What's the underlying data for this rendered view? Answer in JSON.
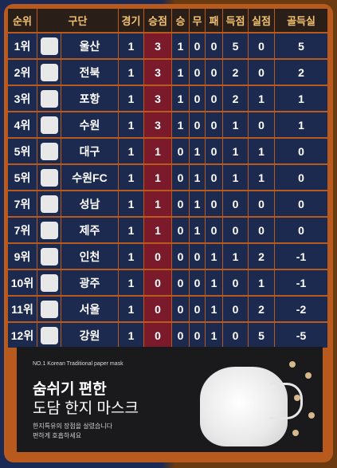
{
  "headers": [
    "순위",
    "구단",
    "경기",
    "승점",
    "승",
    "무",
    "패",
    "득점",
    "실점",
    "골득실"
  ],
  "rows": [
    {
      "rank": "1위",
      "team": "울산",
      "games": "1",
      "pts": "3",
      "w": "1",
      "d": "0",
      "l": "0",
      "gf": "5",
      "ga": "0",
      "gd": "5"
    },
    {
      "rank": "2위",
      "team": "전북",
      "games": "1",
      "pts": "3",
      "w": "1",
      "d": "0",
      "l": "0",
      "gf": "2",
      "ga": "0",
      "gd": "2"
    },
    {
      "rank": "3위",
      "team": "포항",
      "games": "1",
      "pts": "3",
      "w": "1",
      "d": "0",
      "l": "0",
      "gf": "2",
      "ga": "1",
      "gd": "1"
    },
    {
      "rank": "4위",
      "team": "수원",
      "games": "1",
      "pts": "3",
      "w": "1",
      "d": "0",
      "l": "0",
      "gf": "1",
      "ga": "0",
      "gd": "1"
    },
    {
      "rank": "5위",
      "team": "대구",
      "games": "1",
      "pts": "1",
      "w": "0",
      "d": "1",
      "l": "0",
      "gf": "1",
      "ga": "1",
      "gd": "0"
    },
    {
      "rank": "5위",
      "team": "수원FC",
      "games": "1",
      "pts": "1",
      "w": "0",
      "d": "1",
      "l": "0",
      "gf": "1",
      "ga": "1",
      "gd": "0"
    },
    {
      "rank": "7위",
      "team": "성남",
      "games": "1",
      "pts": "1",
      "w": "0",
      "d": "1",
      "l": "0",
      "gf": "0",
      "ga": "0",
      "gd": "0"
    },
    {
      "rank": "7위",
      "team": "제주",
      "games": "1",
      "pts": "1",
      "w": "0",
      "d": "1",
      "l": "0",
      "gf": "0",
      "ga": "0",
      "gd": "0"
    },
    {
      "rank": "9위",
      "team": "인천",
      "games": "1",
      "pts": "0",
      "w": "0",
      "d": "0",
      "l": "1",
      "gf": "1",
      "ga": "2",
      "gd": "-1"
    },
    {
      "rank": "10위",
      "team": "광주",
      "games": "1",
      "pts": "0",
      "w": "0",
      "d": "0",
      "l": "1",
      "gf": "0",
      "ga": "1",
      "gd": "-1"
    },
    {
      "rank": "11위",
      "team": "서울",
      "games": "1",
      "pts": "0",
      "w": "0",
      "d": "0",
      "l": "1",
      "gf": "0",
      "ga": "2",
      "gd": "-2"
    },
    {
      "rank": "12위",
      "team": "강원",
      "games": "1",
      "pts": "0",
      "w": "0",
      "d": "0",
      "l": "1",
      "gf": "0",
      "ga": "5",
      "gd": "-5"
    }
  ],
  "ad": {
    "small": "NO.1 Korean Traditional paper mask",
    "headline1": "숨쉬기 편한",
    "headline2": "도담 한지 마스크",
    "desc1": "한지특유의 장점을 살렸습니다",
    "desc2": "편하게 호흡하세요"
  },
  "colors": {
    "frame": "#b85a1e",
    "cell": "#1d2a4f",
    "points_col": "#7a1a2a",
    "header_text": "#f3c270"
  }
}
